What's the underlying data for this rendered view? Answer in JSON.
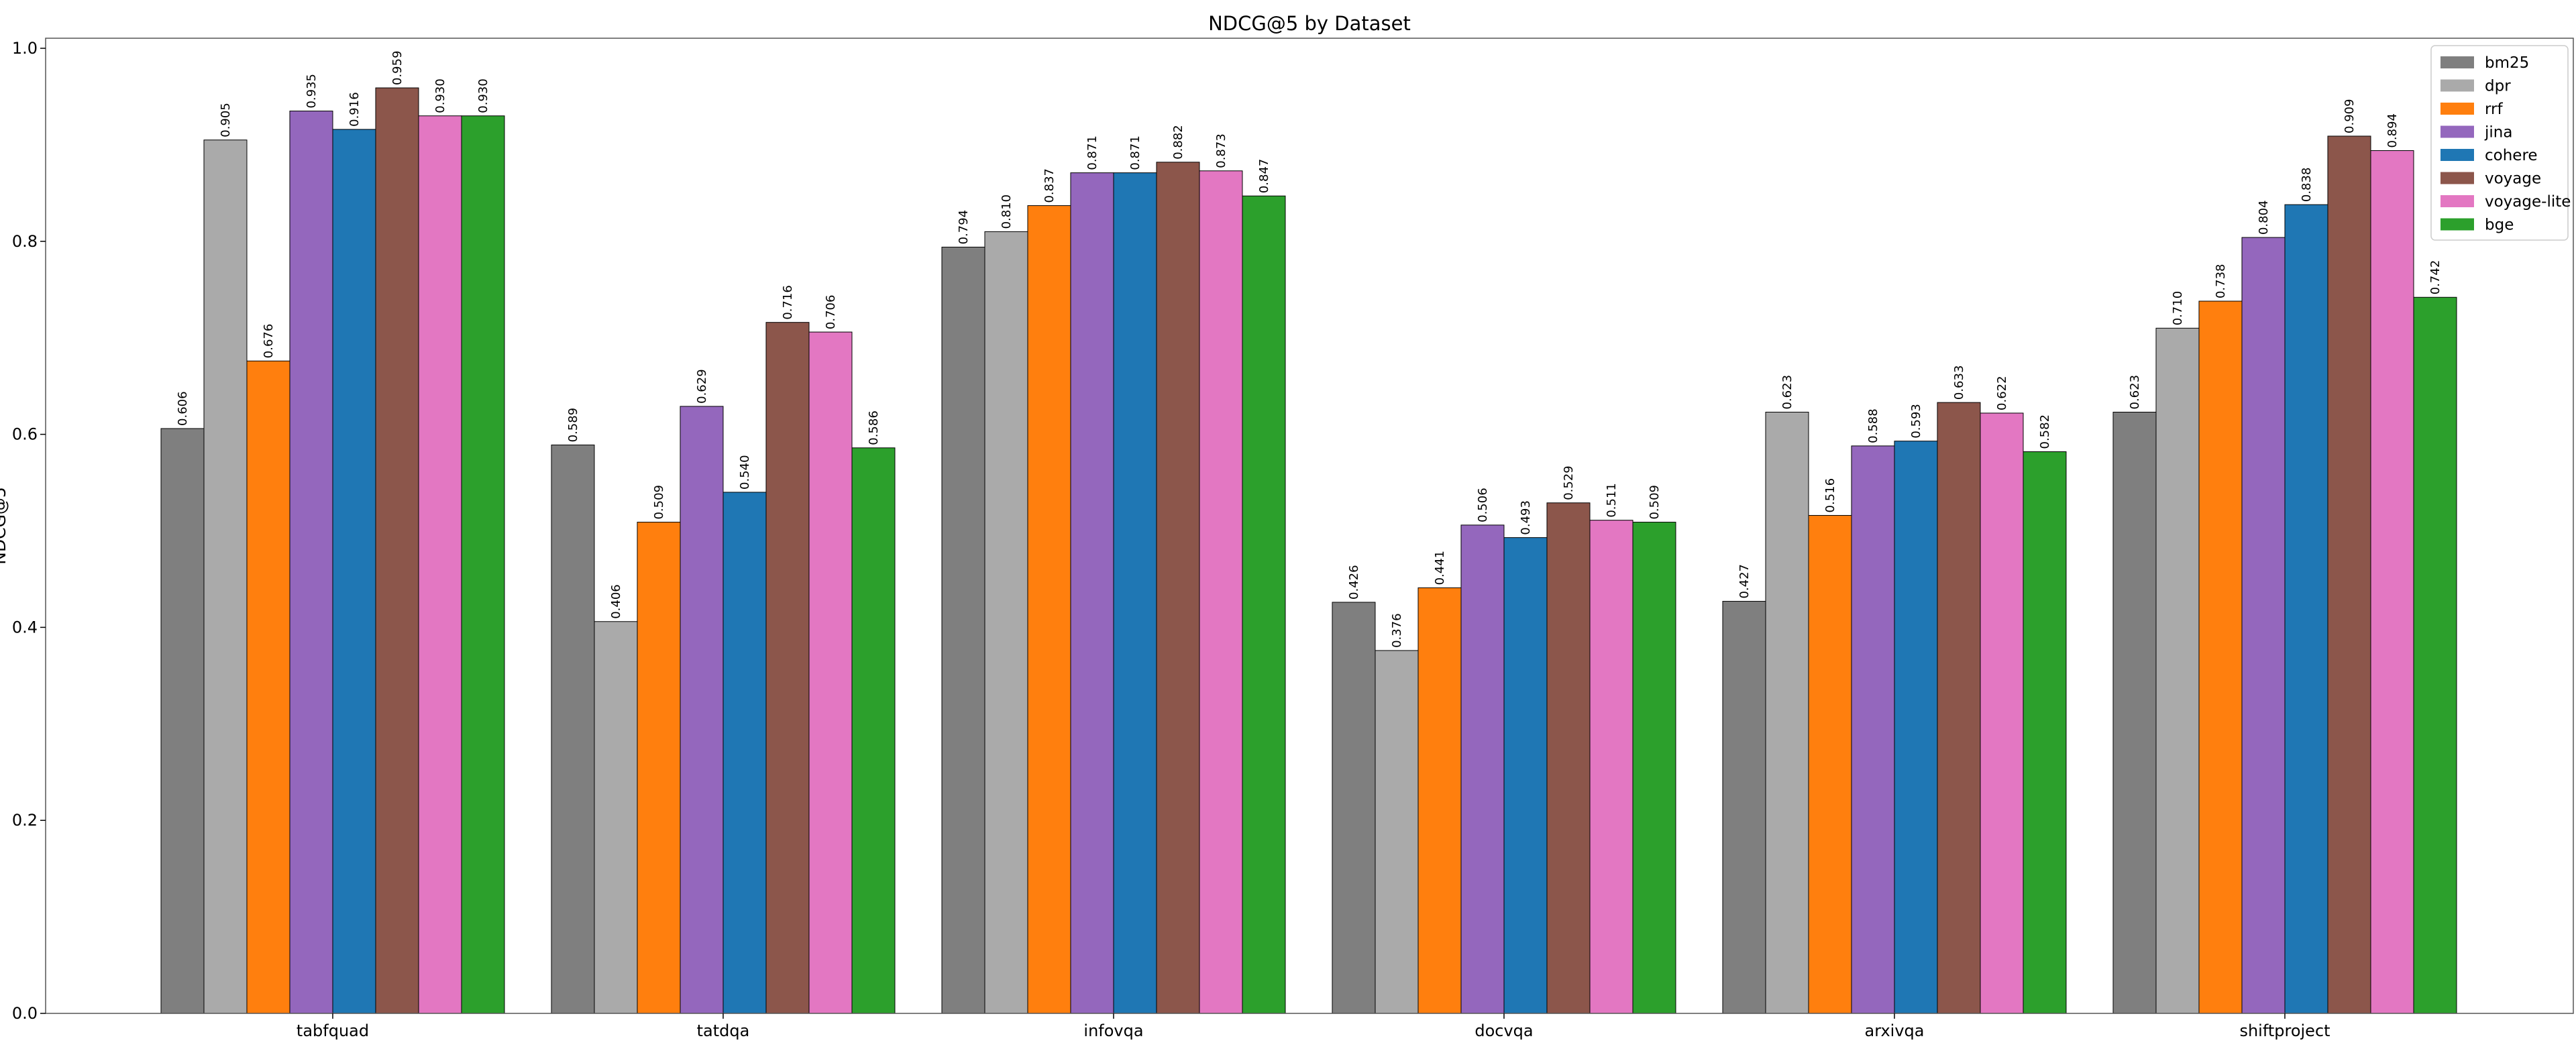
{
  "chart_data": {
    "type": "bar",
    "title": "NDCG@5 by Dataset",
    "ylabel": "NDCG@5",
    "xlabel": "",
    "ylim": [
      0,
      1.0
    ],
    "yticks": [
      "0.0",
      "0.2",
      "0.4",
      "0.6",
      "0.8",
      "1.0"
    ],
    "grid": false,
    "legend_position": "top-right",
    "categories": [
      "tabfquad",
      "tatdqa",
      "infovqa",
      "docvqa",
      "arxivqa",
      "shiftproject"
    ],
    "series": [
      {
        "name": "bm25",
        "color": "#7f7f7f",
        "values": [
          0.606,
          0.589,
          0.794,
          0.426,
          0.427,
          0.623
        ],
        "labels": [
          "0.606",
          "0.589",
          "0.794",
          "0.426",
          "0.427",
          "0.623"
        ]
      },
      {
        "name": "dpr",
        "color": "#aaaaaa",
        "values": [
          0.905,
          0.406,
          0.81,
          0.376,
          0.623,
          0.71
        ],
        "labels": [
          "0.905",
          "0.406",
          "0.810",
          "0.376",
          "0.623",
          "0.710"
        ]
      },
      {
        "name": "rrf",
        "color": "#ff7f0e",
        "values": [
          0.676,
          0.509,
          0.837,
          0.441,
          0.516,
          0.738
        ],
        "labels": [
          "0.676",
          "0.509",
          "0.837",
          "0.441",
          "0.516",
          "0.738"
        ]
      },
      {
        "name": "jina",
        "color": "#9467bd",
        "values": [
          0.935,
          0.629,
          0.871,
          0.506,
          0.588,
          0.804
        ],
        "labels": [
          "0.935",
          "0.629",
          "0.871",
          "0.506",
          "0.588",
          "0.804"
        ]
      },
      {
        "name": "cohere",
        "color": "#1f77b4",
        "values": [
          0.916,
          0.54,
          0.871,
          0.493,
          0.593,
          0.838
        ],
        "labels": [
          "0.916",
          "0.540",
          "0.871",
          "0.493",
          "0.593",
          "0.838"
        ]
      },
      {
        "name": "voyage",
        "color": "#8c564b",
        "values": [
          0.959,
          0.716,
          0.882,
          0.529,
          0.633,
          0.909
        ],
        "labels": [
          "0.959",
          "0.716",
          "0.882",
          "0.529",
          "0.633",
          "0.909"
        ]
      },
      {
        "name": "voyage-lite",
        "color": "#e377c2",
        "values": [
          0.93,
          0.706,
          0.873,
          0.511,
          0.622,
          0.894
        ],
        "labels": [
          "0.930",
          "0.706",
          "0.873",
          "0.511",
          "0.622",
          "0.894"
        ]
      },
      {
        "name": "bge",
        "color": "#2ca02c",
        "values": [
          0.93,
          0.586,
          0.847,
          0.509,
          0.582,
          0.742
        ],
        "labels": [
          "0.930",
          "0.586",
          "0.847",
          "0.509",
          "0.582",
          "0.742"
        ]
      }
    ]
  }
}
